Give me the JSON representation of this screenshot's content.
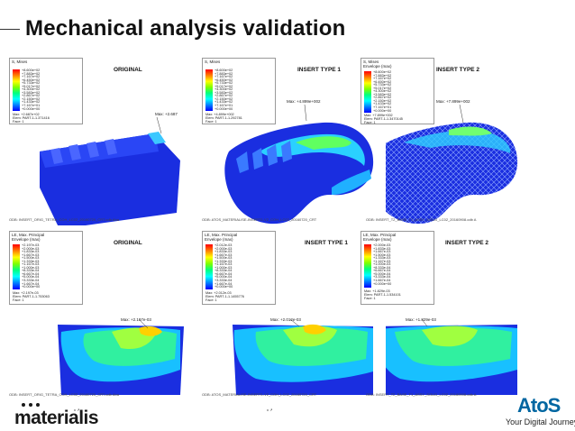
{
  "slide": {
    "title": "Mechanical analysis validation"
  },
  "panels": [
    {
      "label": "ORIGINAL",
      "legend_title": [
        "S, Mises"
      ],
      "legend_values": [
        "+8.600e+02",
        "+7.883e+02",
        "+7.167e+02",
        "+6.450e+02",
        "+5.733e+02",
        "+5.017e+02",
        "+4.300e+02",
        "+3.583e+02",
        "+2.867e+02",
        "+2.150e+02",
        "+1.433e+02",
        "+7.167e+01",
        "+0.000e+00"
      ],
      "legend_footer": [
        "Max: +2.687e+02",
        "Elem: PART-1-1.371416",
        "Face: 1"
      ],
      "max_marker": "Max: +2.687",
      "odb": "ODB: INSERT_ORIG_TETRA_COH_LC02_20160720_CRT.odb   Aba"
    },
    {
      "label": "INSERT TYPE 1",
      "legend_title": [
        "S, Mises"
      ],
      "legend_values": [
        "+8.600e+02",
        "+7.883e+02",
        "+7.167e+02",
        "+6.450e+02",
        "+5.733e+02",
        "+5.017e+02",
        "+4.300e+02",
        "+3.583e+02",
        "+2.867e+02",
        "+2.150e+02",
        "+1.433e+02",
        "+7.167e+01",
        "+0.000e+00"
      ],
      "legend_footer": [
        "Max: +4.899e+002",
        "Elem: PART-1-1.292781",
        "Face: 1"
      ],
      "max_marker": "Max: +4.899e+002",
      "odb": "ODB: ATOS_MATERIALISE-INSERT1-V2_COH_LC02_20160720_CRT"
    },
    {
      "label": "INSERT TYPE 2",
      "legend_title": [
        "S, Mises",
        "Envelope (max)"
      ],
      "legend_values": [
        "+8.600e+02",
        "+7.883e+02",
        "+7.167e+02",
        "+6.450e+02",
        "+5.733e+02",
        "+5.017e+02",
        "+4.300e+02",
        "+3.583e+02",
        "+2.867e+02",
        "+2.150e+02",
        "+1.433e+02",
        "+7.167e+01",
        "+0.000e+00"
      ],
      "legend_footer": [
        "Max: +7.899e+002",
        "Elem: PART-1-1.3470145",
        "Face: 1"
      ],
      "max_marker": "Max: +7.899e+002",
      "odb": "ODB: INSERT_T2_BASE_T1_ASSY_SOLID_LC02_20160908.odb   A"
    },
    {
      "label": "ORIGINAL",
      "legend_title": [
        "LE, Max. Principal",
        "Envelope (max)"
      ],
      "legend_values": [
        "+2.197e-03",
        "+2.000e-03",
        "+1.833e-03",
        "+1.667e-03",
        "+1.500e-03",
        "+1.333e-03",
        "+1.167e-03",
        "+1.000e-03",
        "+8.333e-04",
        "+6.667e-04",
        "+5.000e-04",
        "+3.333e-04",
        "+1.667e-04",
        "+0.000e+00"
      ],
      "legend_footer": [
        "Max: +2.197e-03",
        "Elem: PART-1-1.753063",
        "Face: 1"
      ],
      "max_marker": "Max: +2.197e-03",
      "odb": "ODB: INSERT_ORIG_TETRA_COH_LC02_20160720_CRT.odb   Aba"
    },
    {
      "label": "INSERT TYPE 1",
      "legend_title": [
        "LE, Max. Principal",
        "Envelope (max)"
      ],
      "legend_values": [
        "+2.012e-03",
        "+2.000e-03",
        "+1.833e-03",
        "+1.667e-03",
        "+1.500e-03",
        "+1.333e-03",
        "+1.167e-03",
        "+1.000e-03",
        "+8.333e-04",
        "+6.667e-04",
        "+5.000e-04",
        "+3.333e-04",
        "+1.667e-04",
        "+0.000e+00"
      ],
      "legend_footer": [
        "Max: +2.012e-03",
        "Elem: PART-1-1.1455776",
        "Face: 1"
      ],
      "max_marker": "Max: +2.012e-03",
      "odb": "ODB: ATOS_MATERIALISE-INSERT1-V2_COH_LC02_20160720_CRT"
    },
    {
      "label": "INSERT TYPE 2",
      "legend_title": [
        "LE, Max. Principal",
        "Envelope (max)"
      ],
      "legend_values": [
        "+2.000e-03",
        "+1.833e-03",
        "+1.667e-03",
        "+1.500e-03",
        "+1.333e-03",
        "+1.167e-03",
        "+1.000e-03",
        "+8.333e-04",
        "+6.667e-04",
        "+5.000e-04",
        "+3.333e-04",
        "+1.667e-04",
        "+0.000e+00"
      ],
      "legend_footer": [
        "Max: +1.829e-03",
        "Elem: PART-1-1.534101",
        "Face: 1"
      ],
      "max_marker": "Max: +1.829e-03",
      "odb": "ODB: INSERT_T2_BASE_T1_ASSY_SOLID_LC02_20160908.odb   A"
    }
  ],
  "branding": {
    "left_logo": "materialis",
    "right_logo": "AtoS",
    "tagline": "Your Digital Journey"
  },
  "colors": {
    "mesh_blue": "#1a2ee0",
    "atos_blue": "#0066a1"
  }
}
